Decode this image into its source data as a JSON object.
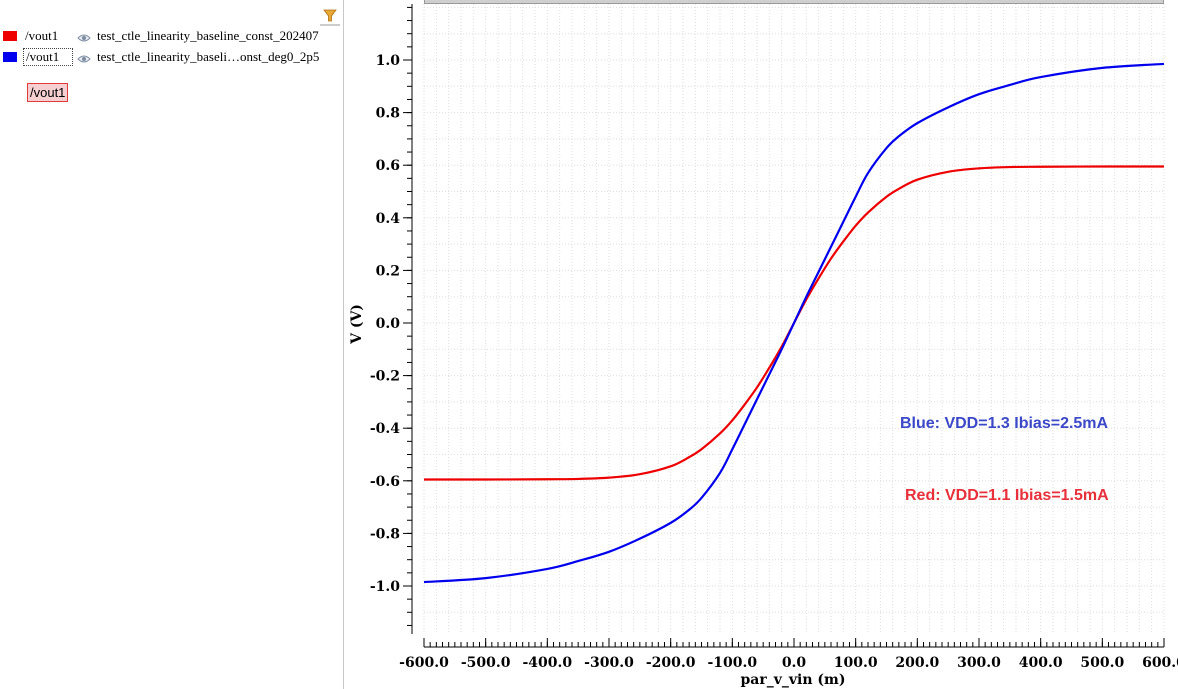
{
  "legend": {
    "rows": [
      {
        "color": "#ee0000",
        "signal": "/vout1",
        "dataset": "test_ctle_linearity_baseline_const_202407"
      },
      {
        "color": "#0000ee",
        "signal": "/vout1",
        "dataset": "test_ctle_linearity_baseli…onst_deg0_2p5"
      }
    ],
    "tag": "/vout1",
    "filter_icon": "funnel-icon",
    "visibility_icon": "eye-icon"
  },
  "chart_data": {
    "type": "line",
    "xlabel": "par_v_vin (m)",
    "ylabel": "V (V)",
    "xlim": [
      -600,
      600
    ],
    "ylim": [
      -1.2,
      1.22
    ],
    "grid": true,
    "xticks": [
      -600,
      -500,
      -400,
      -300,
      -200,
      -100,
      0,
      100,
      200,
      300,
      400,
      500,
      600
    ],
    "xtick_labels": [
      "-600.0",
      "-500.0",
      "-400.0",
      "-300.0",
      "-200.0",
      "-100.0",
      "0.0",
      "100.0",
      "200.0",
      "300.0",
      "400.0",
      "500.0",
      "600.0"
    ],
    "yticks": [
      -1.0,
      -0.8,
      -0.6,
      -0.4,
      -0.2,
      0.0,
      0.2,
      0.4,
      0.6,
      0.8,
      1.0
    ],
    "ytick_labels": [
      "-1.0",
      "-0.8",
      "-0.6",
      "-0.4",
      "-0.2",
      "0.0",
      "0.2",
      "0.4",
      "0.6",
      "0.8",
      "1.0"
    ],
    "series": [
      {
        "color": "#ee0000",
        "x": [
          -600,
          -500,
          -400,
          -350,
          -300,
          -250,
          -200,
          -170,
          -150,
          -120,
          -100,
          -80,
          -60,
          -40,
          -20,
          0,
          20,
          40,
          60,
          80,
          100,
          120,
          150,
          170,
          200,
          250,
          300,
          350,
          400,
          500,
          600
        ],
        "y": [
          -0.595,
          -0.595,
          -0.594,
          -0.593,
          -0.588,
          -0.575,
          -0.545,
          -0.51,
          -0.48,
          -0.42,
          -0.37,
          -0.31,
          -0.245,
          -0.17,
          -0.09,
          0.0,
          0.09,
          0.17,
          0.245,
          0.31,
          0.37,
          0.42,
          0.48,
          0.51,
          0.545,
          0.575,
          0.588,
          0.593,
          0.594,
          0.595,
          0.595
        ]
      },
      {
        "color": "#0000ee",
        "x": [
          -600,
          -500,
          -400,
          -350,
          -300,
          -250,
          -200,
          -170,
          -150,
          -120,
          -100,
          -80,
          -60,
          -40,
          -20,
          0,
          20,
          40,
          60,
          80,
          100,
          120,
          150,
          170,
          200,
          250,
          300,
          350,
          400,
          500,
          600
        ],
        "y": [
          -0.985,
          -0.97,
          -0.935,
          -0.905,
          -0.87,
          -0.82,
          -0.76,
          -0.71,
          -0.665,
          -0.57,
          -0.48,
          -0.385,
          -0.29,
          -0.195,
          -0.1,
          0.0,
          0.1,
          0.195,
          0.29,
          0.385,
          0.48,
          0.57,
          0.665,
          0.71,
          0.76,
          0.82,
          0.87,
          0.905,
          0.935,
          0.97,
          0.985
        ]
      }
    ],
    "annotations": [
      {
        "text": "Blue: VDD=1.3 Ibias=2.5mA",
        "color": "#3b48c8"
      },
      {
        "text": "Red: VDD=1.1 Ibias=1.5mA",
        "color": "#e8303a"
      }
    ]
  }
}
